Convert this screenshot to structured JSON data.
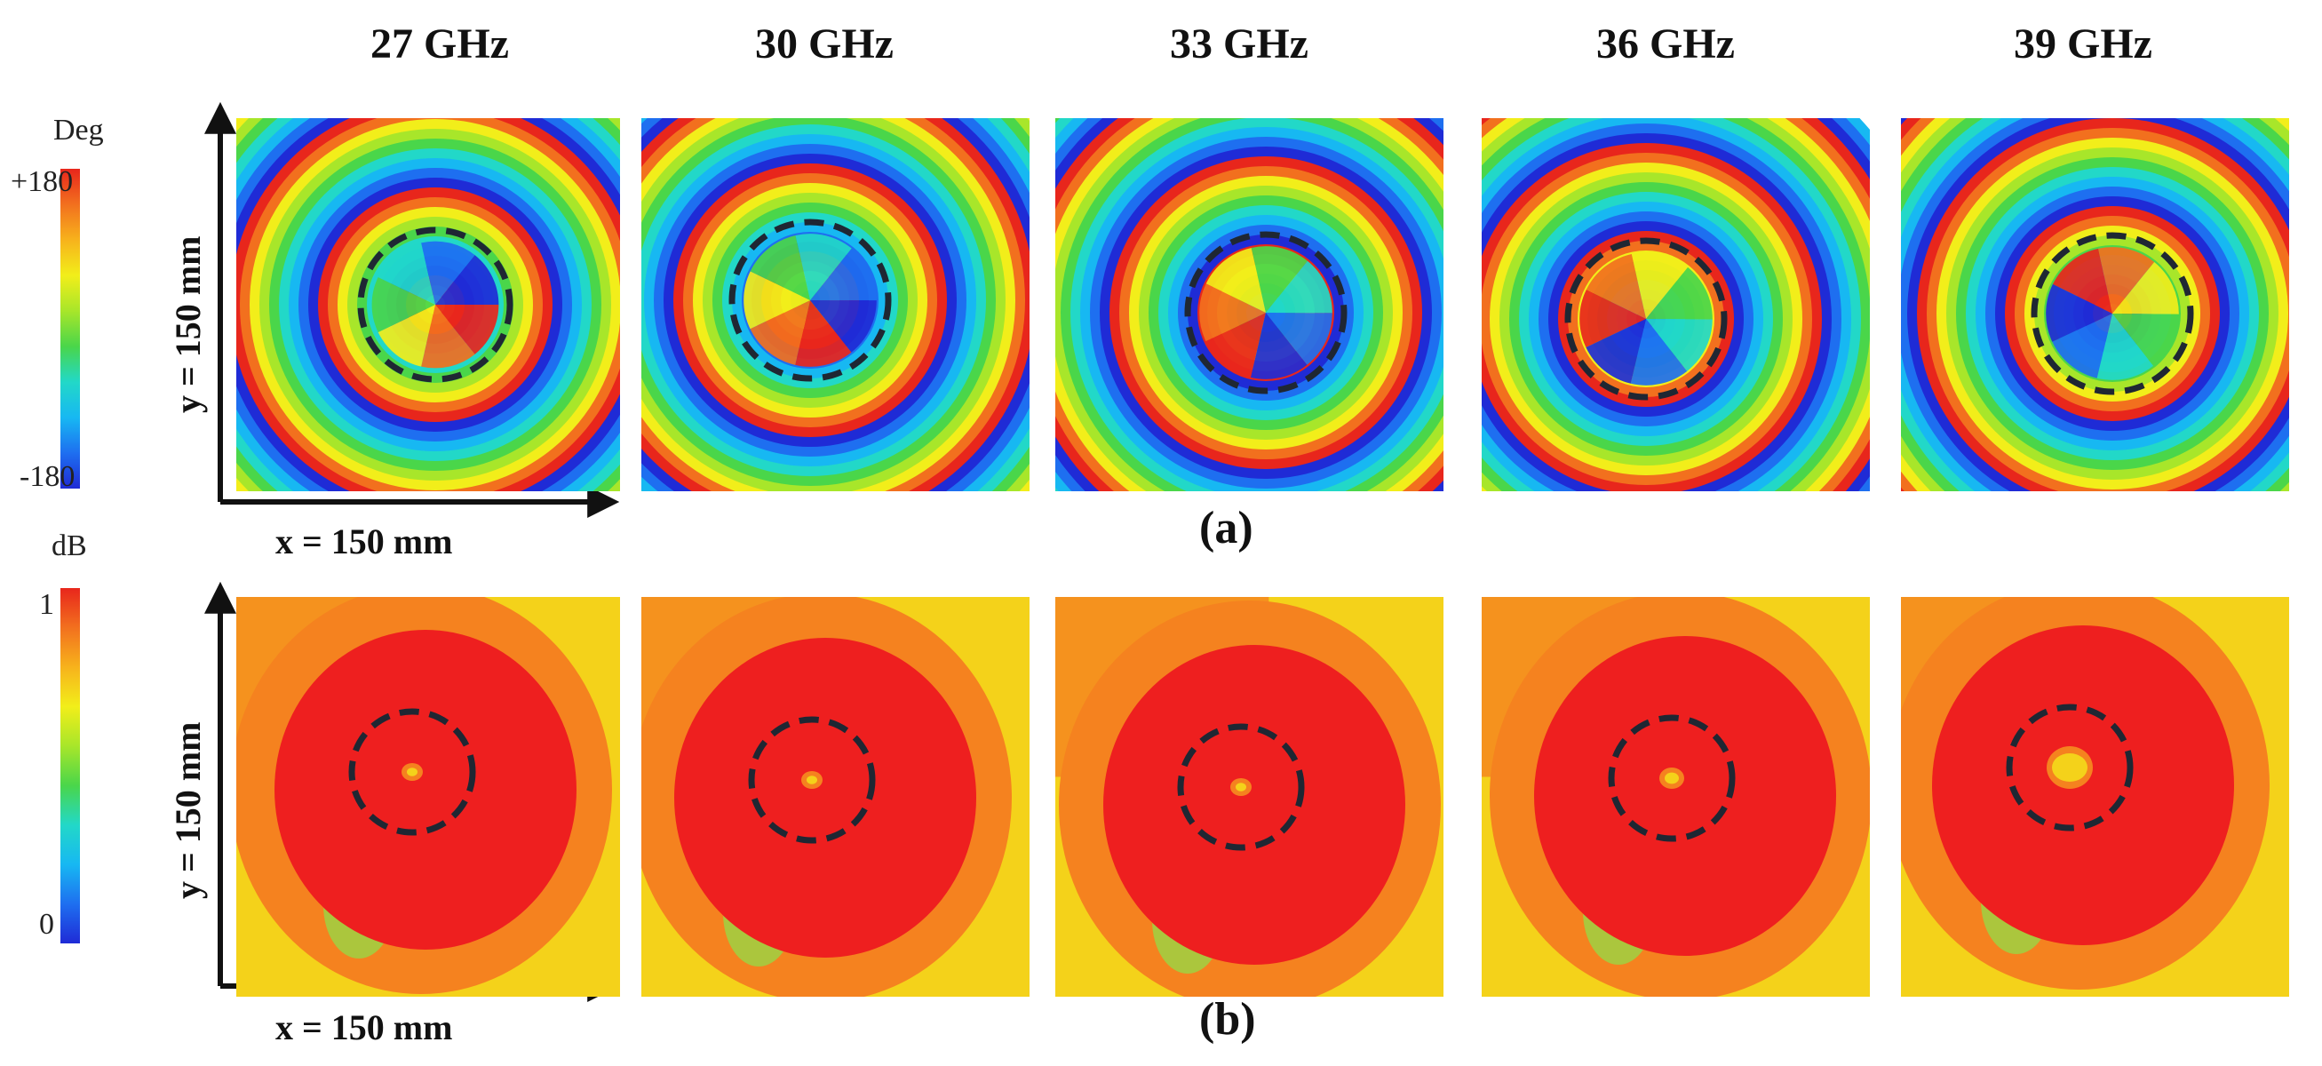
{
  "frequencies": [
    "27 GHz",
    "30 GHz",
    "33 GHz",
    "36 GHz",
    "39 GHz"
  ],
  "phase_row": {
    "panel_label": "(a)",
    "x_axis_label": "x = 150 mm",
    "y_axis_label": "y = 150 mm",
    "colorbar": {
      "unit": "Deg",
      "max_label": "+180",
      "min_label": "-180"
    }
  },
  "magnitude_row": {
    "panel_label": "(b)",
    "x_axis_label": "x = 150 mm",
    "y_axis_label": "y = 150 mm",
    "colorbar": {
      "unit": "dB",
      "max_label": "1",
      "min_label": "0"
    }
  },
  "colors": {
    "jet": [
      "#1f2bd6",
      "#1e6ff0",
      "#17b8f2",
      "#22d8c8",
      "#4ad64a",
      "#a8e62a",
      "#f2ee1a",
      "#f7b21c",
      "#f2701e",
      "#e8261c"
    ],
    "mag_red": "#ee1f1f",
    "mag_orange": "#f5821f",
    "mag_yellow": "#f4d21a",
    "mag_green": "#8be34a",
    "circle": "#1f2733"
  }
}
